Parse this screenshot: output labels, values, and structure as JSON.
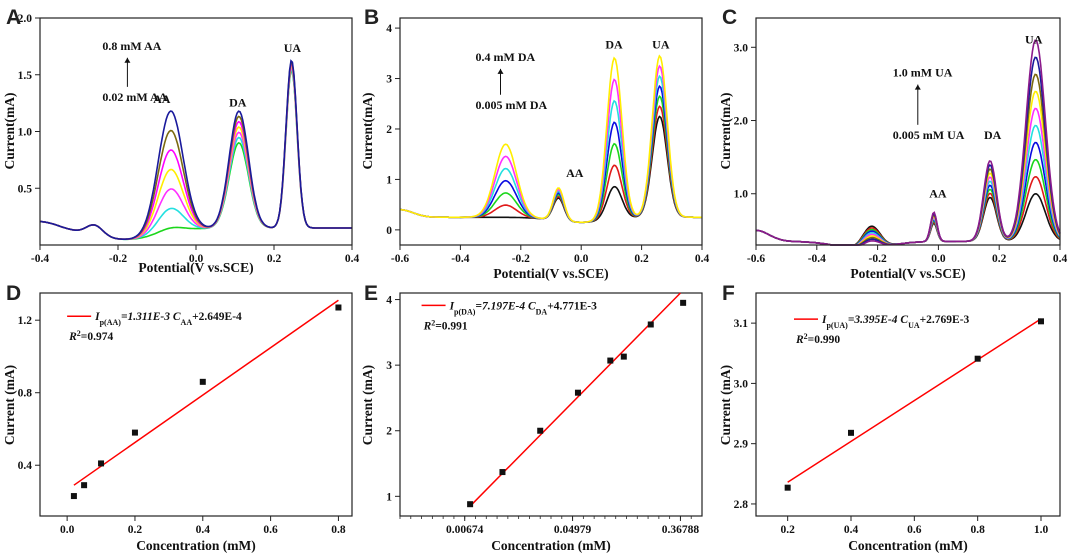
{
  "chart_data": [
    {
      "panel": "A",
      "type": "line",
      "xlabel": "Potential(V vs.SCE)",
      "ylabel": "Current(mA)",
      "xlim": [
        -0.4,
        0.4
      ],
      "ylim": [
        0,
        2.0
      ],
      "xticks": [
        -0.4,
        -0.2,
        0.0,
        0.2,
        0.4
      ],
      "xtick_labels": [
        "-0.4",
        "-0.2",
        "0.0",
        "0.2",
        "0.4"
      ],
      "yticks": [
        0.5,
        1.0,
        1.5,
        2.0
      ],
      "ytick_labels": [
        "0.5",
        "1.0",
        "1.5",
        "2.0"
      ],
      "baseline": 0.15,
      "valley": -0.18,
      "peaks": [
        {
          "label": "AA",
          "x": -0.065,
          "w": 0.045,
          "h_min": 0.04,
          "h_max": 1.07
        },
        {
          "label": "DA",
          "x": 0.11,
          "w": 0.035,
          "h_min": 0.75,
          "h_max": 1.03
        },
        {
          "label": "UA",
          "x": 0.245,
          "w": 0.02,
          "h_min": 1.39,
          "h_max": 1.48
        },
        {
          "label": "",
          "x": -0.26,
          "w": 0.03,
          "h_min": 0.09,
          "h_max": 0.09
        }
      ],
      "peak_labels": [
        {
          "text": "AA",
          "x": -0.11,
          "y": 1.25
        },
        {
          "text": "DA",
          "x": 0.085,
          "y": 1.22
        },
        {
          "text": "UA",
          "x": 0.225,
          "y": 1.7
        }
      ],
      "conc_high": "0.8 mM AA",
      "conc_low": "0.02 mM AA",
      "conc_anchor": {
        "x": -0.24,
        "y_high": 1.72,
        "y_low": 1.27
      },
      "series_colors": [
        "#1bd61b",
        "#23e0e0",
        "#ff2fff",
        "#ffee00",
        "#ff00ff",
        "#7b6a10",
        "#1a1a9c"
      ]
    },
    {
      "panel": "B",
      "type": "line",
      "xlabel": "Potential(V vs.SCE)",
      "ylabel": "Current(mA)",
      "xlim": [
        -0.6,
        0.4
      ],
      "ylim": [
        -0.3,
        4.2
      ],
      "xticks": [
        -0.6,
        -0.4,
        -0.2,
        0.0,
        0.2,
        0.4
      ],
      "xtick_labels": [
        "-0.6",
        "-0.4",
        "-0.2",
        "0.0",
        "0.2",
        "0.4"
      ],
      "yticks": [
        0,
        1,
        2,
        3,
        4
      ],
      "ytick_labels": [
        "0",
        "1",
        "2",
        "3",
        "4"
      ],
      "baseline": 0.25,
      "valley": 0.0,
      "peaks": [
        {
          "label": "",
          "x": -0.25,
          "w": 0.05,
          "h_min": 0.0,
          "h_max": 1.45
        },
        {
          "label": "AA",
          "x": -0.075,
          "w": 0.025,
          "h_min": 0.45,
          "h_max": 0.65
        },
        {
          "label": "DA",
          "x": 0.11,
          "w": 0.035,
          "h_min": 0.65,
          "h_max": 3.2
        },
        {
          "label": "UA",
          "x": 0.26,
          "w": 0.035,
          "h_min": 2.0,
          "h_max": 3.2
        }
      ],
      "peak_labels": [
        {
          "text": "AA",
          "x": -0.05,
          "y": 1.05
        },
        {
          "text": "DA",
          "x": 0.08,
          "y": 3.6
        },
        {
          "text": "UA",
          "x": 0.235,
          "y": 3.6
        }
      ],
      "conc_high": "0.4 mM DA",
      "conc_low": "0.005 mM DA",
      "conc_anchor": {
        "x": -0.35,
        "y_high": 3.35,
        "y_low": 2.4
      },
      "series_colors": [
        "#111111",
        "#e01a1a",
        "#1bd61b",
        "#0a0ae0",
        "#23e0e0",
        "#ff2fff",
        "#ffee00"
      ]
    },
    {
      "panel": "C",
      "type": "line",
      "xlabel": "Potential(V vs.SCE)",
      "ylabel": "Current(mA)",
      "xlim": [
        -0.6,
        0.4
      ],
      "ylim": [
        0.3,
        3.4
      ],
      "xticks": [
        -0.6,
        -0.4,
        -0.2,
        0.0,
        0.2,
        0.4
      ],
      "xtick_labels": [
        "-0.6",
        "-0.4",
        "-0.2",
        "0.0",
        "0.2",
        "0.4"
      ],
      "yticks": [
        1.0,
        2.0,
        3.0
      ],
      "ytick_labels": [
        "1.0",
        "2.0",
        "3.0"
      ],
      "baseline": 0.35,
      "valley": -0.25,
      "peaks": [
        {
          "label": "",
          "x": -0.22,
          "w": 0.04,
          "h_min": 0.1,
          "h_max": 0.3
        },
        {
          "label": "AA",
          "x": -0.015,
          "w": 0.015,
          "h_min": 0.25,
          "h_max": 0.4
        },
        {
          "label": "DA",
          "x": 0.17,
          "w": 0.03,
          "h_min": 0.6,
          "h_max": 1.1
        },
        {
          "label": "UA",
          "x": 0.32,
          "w": 0.045,
          "h_min": 0.65,
          "h_max": 2.75
        }
      ],
      "peak_labels": [
        {
          "text": "AA",
          "x": -0.03,
          "y": 0.95
        },
        {
          "text": "DA",
          "x": 0.15,
          "y": 1.75
        },
        {
          "text": "UA",
          "x": 0.285,
          "y": 3.05
        }
      ],
      "conc_high": "1.0 mM UA",
      "conc_low": "0.005 mM UA",
      "conc_anchor": {
        "x": -0.15,
        "y_high": 2.6,
        "y_low": 1.75
      },
      "series_colors": [
        "#111111",
        "#e01a1a",
        "#1bd61b",
        "#0a0ae0",
        "#23e0e0",
        "#ff2fff",
        "#ffee00",
        "#7b6a10",
        "#1a1a9c",
        "#8b1a8b"
      ]
    },
    {
      "panel": "D",
      "type": "scatter",
      "xlabel": "Concentration (mM)",
      "ylabel": "Current (mA)",
      "xlim": [
        -0.08,
        0.84
      ],
      "ylim": [
        0.12,
        1.35
      ],
      "xticks": [
        0.0,
        0.2,
        0.4,
        0.6,
        0.8
      ],
      "xtick_labels": [
        "0.0",
        "0.2",
        "0.4",
        "0.6",
        "0.8"
      ],
      "yticks": [
        0.4,
        0.8,
        1.2
      ],
      "ytick_labels": [
        "0.4",
        "0.8",
        "1.2"
      ],
      "x": [
        0.02,
        0.05,
        0.1,
        0.2,
        0.4,
        0.8
      ],
      "y": [
        0.23,
        0.29,
        0.41,
        0.58,
        0.86,
        1.27
      ],
      "fit": {
        "x": [
          0.02,
          0.8
        ],
        "y": [
          0.29,
          1.31
        ]
      },
      "equation": "I",
      "eq_sub": "p(AA)",
      "eq_mid": "=1.311E-3 C",
      "eq_sub2": "AA",
      "eq_end": "+2.649E-4",
      "r2": "R",
      "r2_sup": "2",
      "r2_val": "=0.974",
      "eq_anchor": {
        "x": 0.0,
        "y": 1.2
      }
    },
    {
      "panel": "E",
      "type": "scatter",
      "xscale": "log",
      "xlabel": "Concentration (mM)",
      "ylabel": "Current (mA)",
      "xlim_log": [
        -6.2,
        -0.6
      ],
      "ylim": [
        0.7,
        4.1
      ],
      "xticks_log": [
        -5.0,
        -3.0,
        -1.0
      ],
      "xtick_labels": [
        "0.00674",
        "0.04979",
        "0.36788"
      ],
      "yticks": [
        1,
        2,
        3,
        4
      ],
      "ytick_labels": [
        "1",
        "2",
        "3",
        "4"
      ],
      "x_log": [
        -4.9,
        -4.3,
        -3.6,
        -2.9,
        -2.3,
        -2.05,
        -1.55,
        -0.95
      ],
      "y": [
        0.88,
        1.37,
        2.0,
        2.58,
        3.07,
        3.13,
        3.62,
        3.95
      ],
      "fit": {
        "x_log": [
          -4.9,
          -1.0
        ],
        "y": [
          0.85,
          4.1
        ]
      },
      "equation": "I",
      "eq_sub": "p(DA)",
      "eq_mid": "=7.197E-4 C",
      "eq_sub2": "DA",
      "eq_end": "+4.771E-3",
      "r2": "R",
      "r2_sup": "2",
      "r2_val": "=0.991",
      "eq_anchor_log": {
        "x": -5.8,
        "y": 3.85
      }
    },
    {
      "panel": "F",
      "type": "scatter",
      "xlabel": "Concentration (mM)",
      "ylabel": "Current (mA)",
      "xlim": [
        0.1,
        1.06
      ],
      "ylim": [
        2.78,
        3.15
      ],
      "xticks": [
        0.2,
        0.4,
        0.6,
        0.8,
        1.0
      ],
      "xtick_labels": [
        "0.2",
        "0.4",
        "0.6",
        "0.8",
        "1.0"
      ],
      "yticks": [
        2.8,
        2.9,
        3.0,
        3.1
      ],
      "ytick_labels": [
        "2.8",
        "2.9",
        "3.0",
        "3.1"
      ],
      "x": [
        0.2,
        0.4,
        0.8,
        1.0
      ],
      "y": [
        2.827,
        2.918,
        3.041,
        3.103
      ],
      "fit": {
        "x": [
          0.2,
          1.0
        ],
        "y": [
          2.836,
          3.107
        ]
      },
      "equation": "I",
      "eq_sub": "p(UA)",
      "eq_mid": "=3.395E-4 C",
      "eq_sub2": "UA",
      "eq_end": "+2.769E-3",
      "r2": "R",
      "r2_sup": "2",
      "r2_val": "=0.990",
      "eq_anchor": {
        "x": 0.22,
        "y": 3.1
      }
    }
  ],
  "colors": {
    "axis": "#222222",
    "fit_line": "#ff0000",
    "marker": "#111111"
  }
}
